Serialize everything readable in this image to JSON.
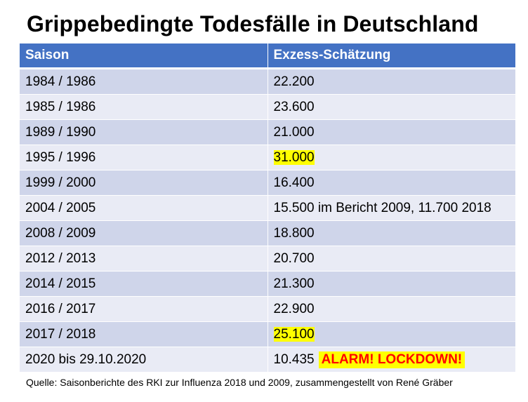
{
  "title": "Grippebedingte Todesfälle in Deutschland",
  "table": {
    "headers": [
      "Saison",
      "Exzess-Schätzung"
    ],
    "rows": [
      {
        "season": "1984 / 1986",
        "estimate": "22.200"
      },
      {
        "season": "1985 / 1986",
        "estimate": "23.600"
      },
      {
        "season": "1989 / 1990",
        "estimate": "21.000"
      },
      {
        "season": "1995 / 1996",
        "estimate": "31.000"
      },
      {
        "season": "1999 / 2000",
        "estimate": "16.400"
      },
      {
        "season": "2004 / 2005",
        "estimate": "15.500 im Bericht 2009, 11.700 2018"
      },
      {
        "season": "2008 / 2009",
        "estimate": "18.800"
      },
      {
        "season": "2012 / 2013",
        "estimate": "20.700"
      },
      {
        "season": "2014 / 2015",
        "estimate": "21.300"
      },
      {
        "season": "2016 / 2017",
        "estimate": "22.900"
      },
      {
        "season": "2017 / 2018",
        "estimate": "25.100"
      },
      {
        "season": "2020 bis 29.10.2020",
        "estimate": "10.435",
        "alarm": "ALARM! LOCKDOWN!"
      }
    ]
  },
  "source": "Quelle: Saisonberichte des RKI zur Influenza 2018 und 2009, zusammengestellt von René Gräber",
  "colors": {
    "header_bg": "#4472c4",
    "row_odd": "#cfd5ea",
    "row_even": "#e9ebf5",
    "highlight": "#ffff00",
    "alarm_text": "#ff0000"
  }
}
